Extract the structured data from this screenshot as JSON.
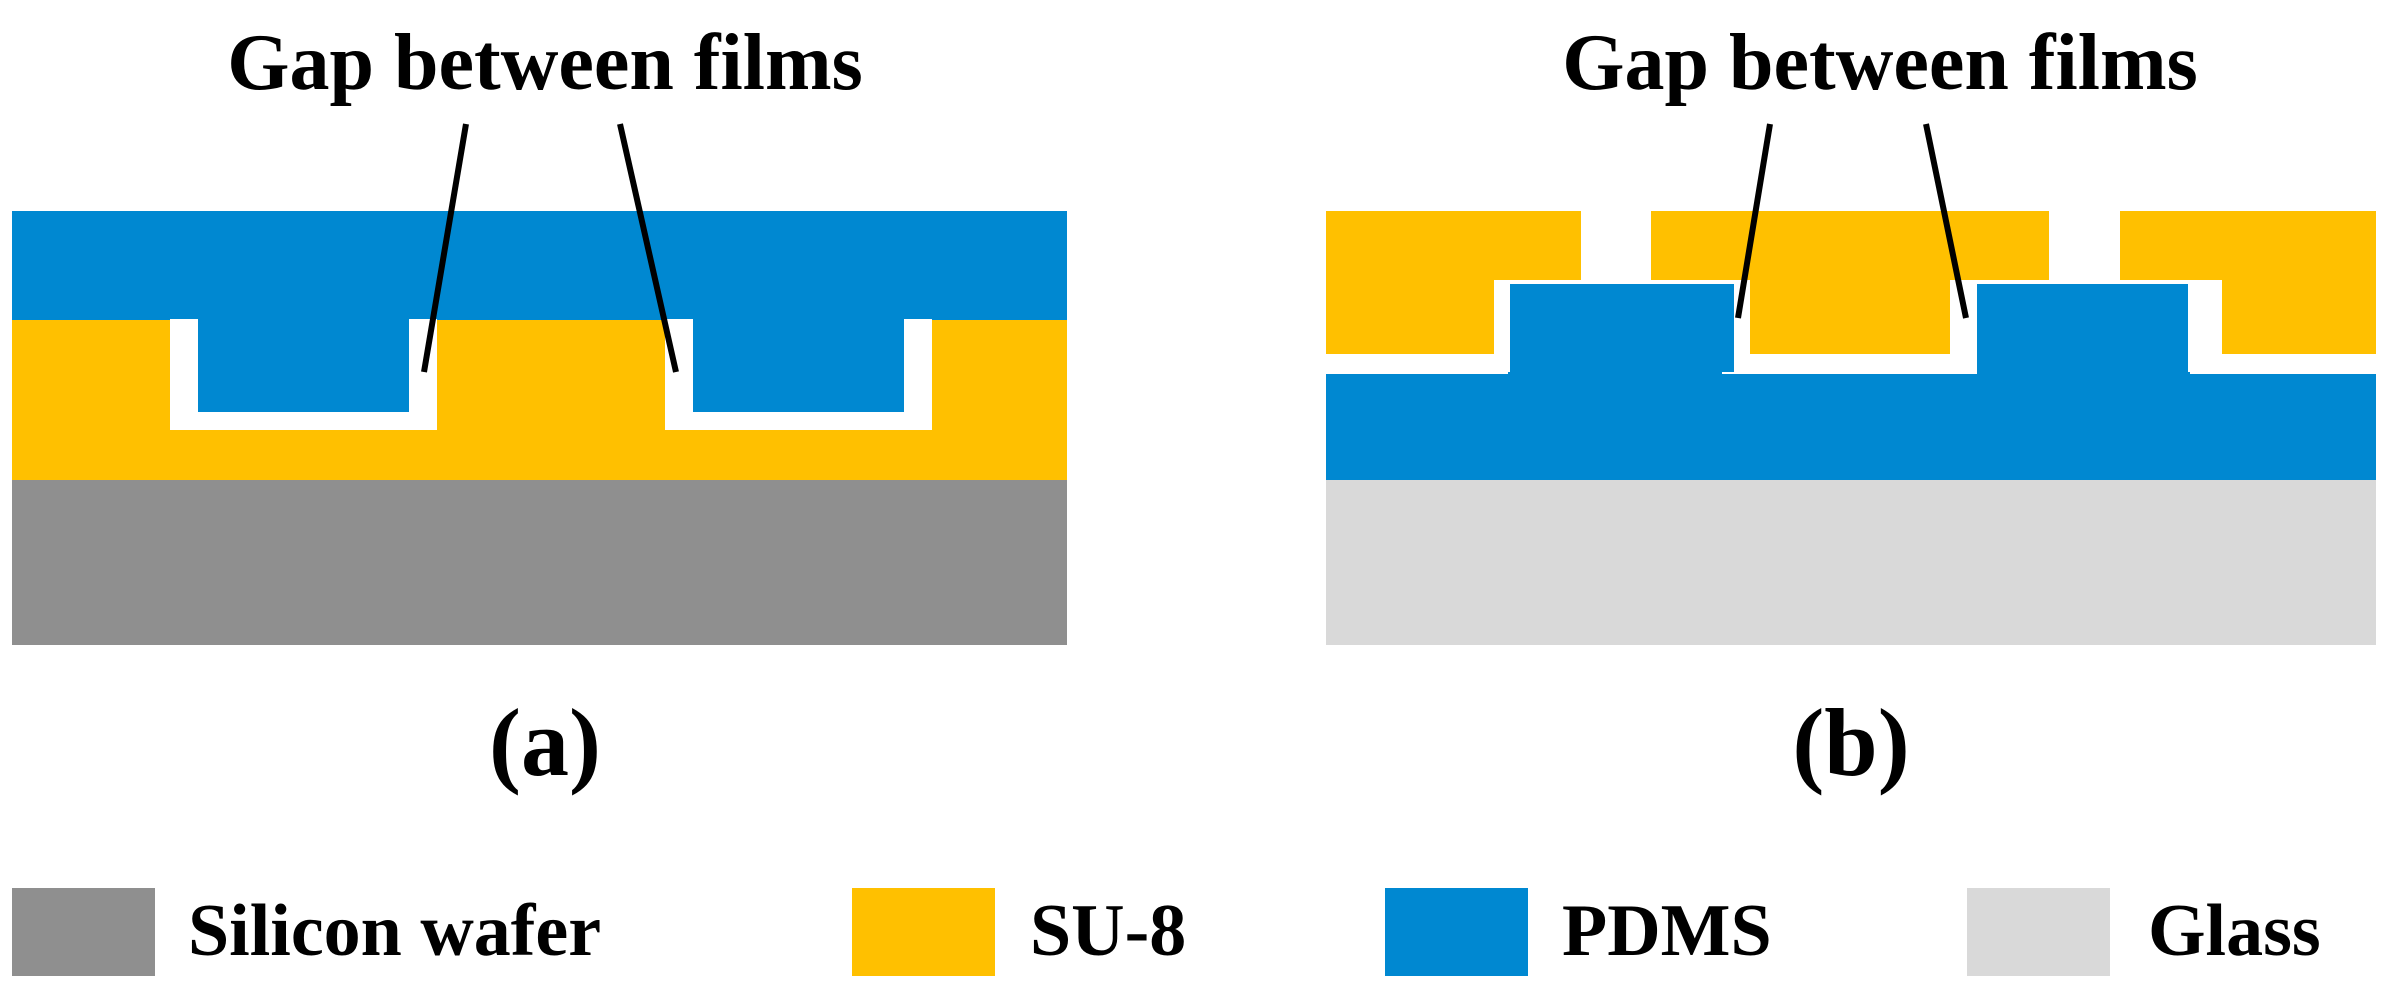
{
  "panels": [
    {
      "id": "a",
      "caption": "(a)",
      "callout": "Gap between films"
    },
    {
      "id": "b",
      "caption": "(b)",
      "callout": "Gap between films"
    }
  ],
  "legend": [
    {
      "label": "Silicon wafer",
      "color": "#8f8f8f"
    },
    {
      "label": "SU-8",
      "color": "#ffc000"
    },
    {
      "label": "PDMS",
      "color": "#0088d1"
    },
    {
      "label": "Glass",
      "color": "#d9d9d9"
    }
  ],
  "colors": {
    "silicon": "#8f8f8f",
    "su8": "#ffc000",
    "pdms": "#0088d1",
    "glass": "#d9d9d9",
    "gap": "#ffffff",
    "leader": "#000000"
  }
}
